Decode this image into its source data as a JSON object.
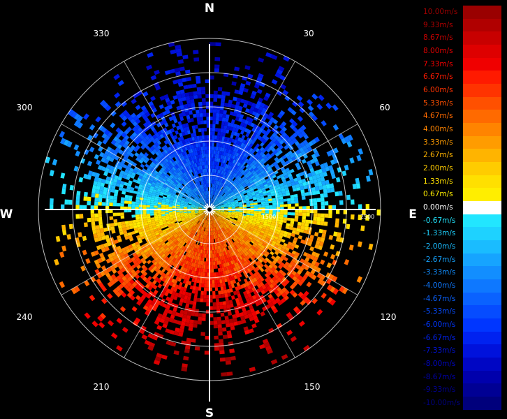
{
  "chart_data": {
    "type": "polar-heatmap",
    "directions": {
      "north": "N",
      "south": "S",
      "east": "E",
      "west": "W"
    },
    "bearing_labels": [
      "30",
      "60",
      "120",
      "150",
      "210",
      "240",
      "300",
      "330"
    ],
    "range_labels": [
      "1500",
      "2500"
    ],
    "grid": true,
    "legend_placement": "right",
    "colorbar": {
      "labels": [
        "10.00m/s",
        "9.33m/s",
        "8.67m/s",
        "8.00m/s",
        "7.33m/s",
        "6.67m/s",
        "6.00m/s",
        "5.33m/s",
        "4.67m/s",
        "4.00m/s",
        "3.33m/s",
        "2.67m/s",
        "2.00m/s",
        "1.33m/s",
        "0.67m/s",
        "0.00m/s",
        "-0.67m/s",
        "-1.33m/s",
        "-2.00m/s",
        "-2.67m/s",
        "-3.33m/s",
        "-4.00m/s",
        "-4.67m/s",
        "-5.33m/s",
        "-6.00m/s",
        "-6.67m/s",
        "-7.33m/s",
        "-8.00m/s",
        "-8.67m/s",
        "-9.33m/s",
        "-10.00m/s"
      ],
      "colors": [
        "#9a0000",
        "#b00000",
        "#c80000",
        "#de0000",
        "#f00000",
        "#ff1a00",
        "#ff3300",
        "#ff5000",
        "#ff6a00",
        "#ff8400",
        "#ff9c00",
        "#ffb400",
        "#ffcc00",
        "#ffe000",
        "#ffee00",
        "#ffffff",
        "#22e6ff",
        "#1ed2ff",
        "#1abcff",
        "#16a4ff",
        "#128eff",
        "#0e78ff",
        "#0a62ff",
        "#064cff",
        "#0036ff",
        "#0022f0",
        "#0012dc",
        "#0006c4",
        "#0000ac",
        "#000094",
        "#00007c"
      ],
      "values": [
        10.0,
        9.33,
        8.67,
        8.0,
        7.33,
        6.67,
        6.0,
        5.33,
        4.67,
        4.0,
        3.33,
        2.67,
        2.0,
        1.33,
        0.67,
        0.0,
        -0.67,
        -1.33,
        -2.0,
        -2.67,
        -3.33,
        -4.0,
        -4.67,
        -5.33,
        -6.0,
        -6.67,
        -7.33,
        -8.0,
        -8.67,
        -9.33,
        -10.0
      ],
      "unit": "m/s"
    }
  }
}
